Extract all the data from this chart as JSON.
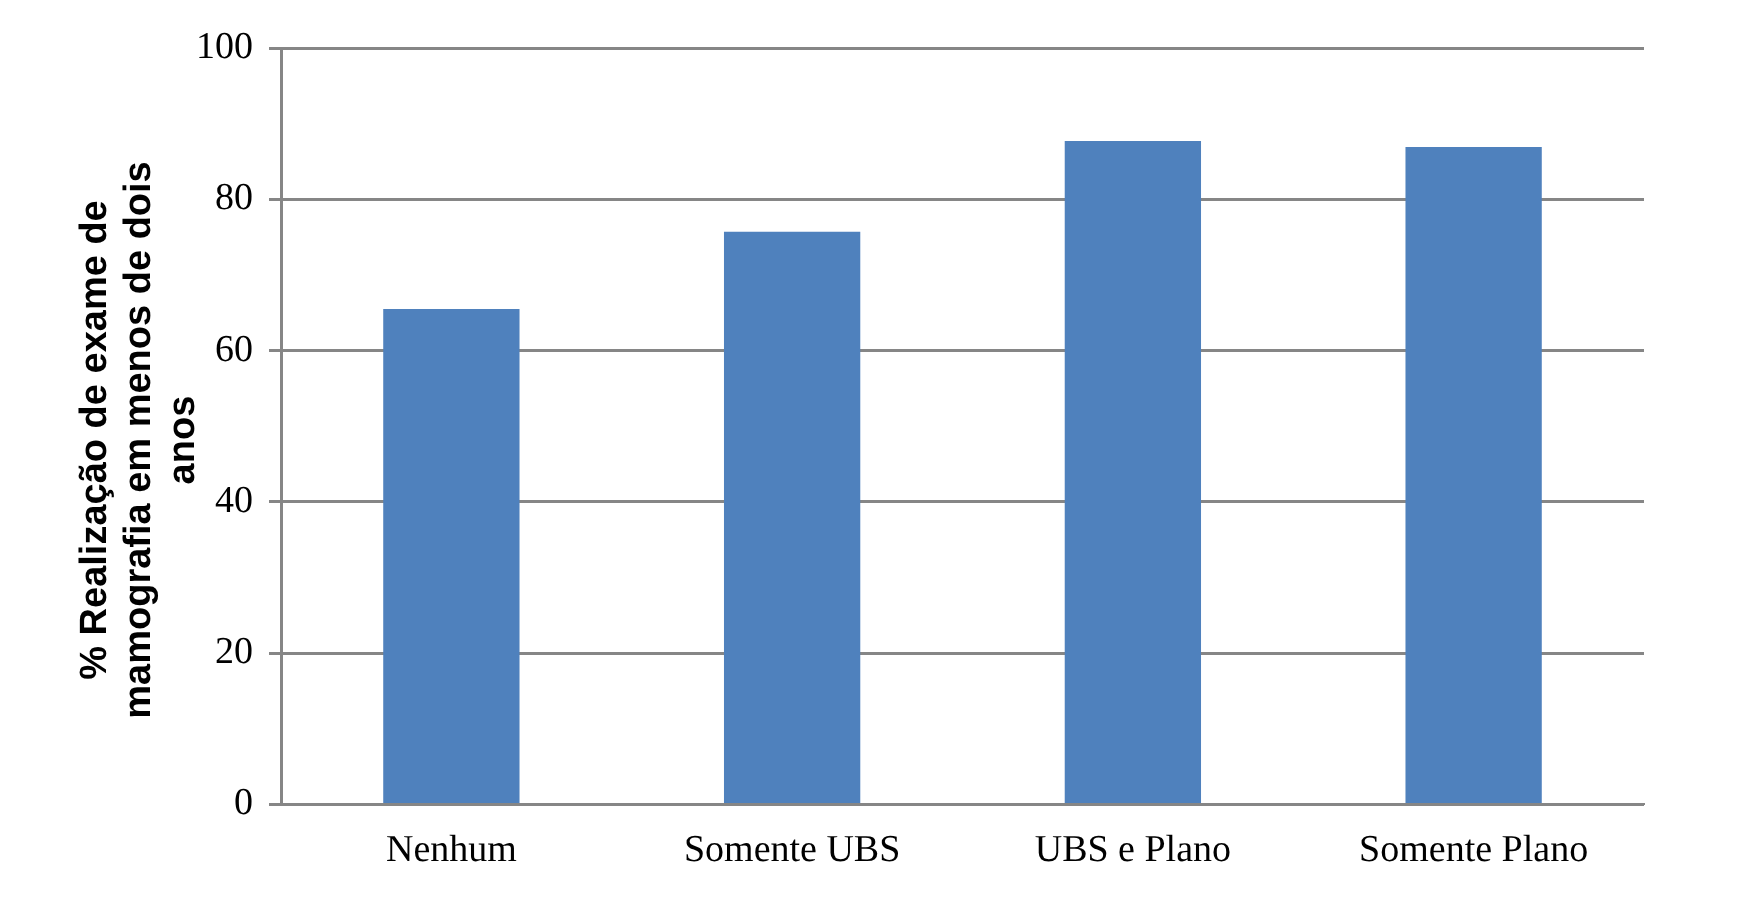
{
  "chart_data": {
    "type": "bar",
    "ylabel": "% Realização de exame de mamografia em menos de dois anos",
    "categories": [
      "Nenhum",
      "Somente UBS",
      "UBS e Plano",
      "Somente Plano"
    ],
    "values": [
      65.5,
      75.7,
      87.7,
      86.9
    ],
    "color": "#4f81bd",
    "ylim": [
      0,
      100
    ],
    "yticks": [
      0,
      20,
      40,
      60,
      80,
      100
    ],
    "grid": "y",
    "legend": false
  }
}
